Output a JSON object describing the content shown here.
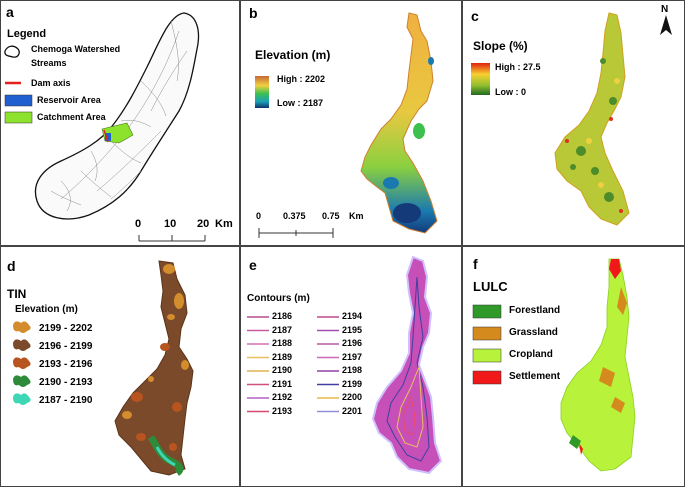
{
  "panels": {
    "a": {
      "label": "a",
      "legend_title": "Legend",
      "legend": [
        {
          "text": "Chemoga Watershed",
          "symbol": "watershed-outline"
        },
        {
          "text": "Streams",
          "symbol": "none"
        },
        {
          "text": "Dam axis",
          "symbol": "red-line",
          "color": "#e3201b"
        },
        {
          "text": "Reservoir Area",
          "symbol": "fill",
          "color": "#1f5fd0"
        },
        {
          "text": "Catchment Area",
          "symbol": "fill",
          "color": "#8ce22c"
        }
      ],
      "scale": {
        "ticks": [
          "0",
          "10",
          "20"
        ],
        "unit": "Km"
      }
    },
    "b": {
      "label": "b",
      "title": "Elevation (m)",
      "high": "High : 2202",
      "low": "Low : 2187",
      "scale": {
        "ticks": [
          "0",
          "0.375",
          "0.75"
        ],
        "unit": "Km"
      }
    },
    "c": {
      "label": "c",
      "title": "Slope (%)",
      "high": "High : 27.5",
      "low": "Low : 0",
      "north": "N"
    },
    "d": {
      "label": "d",
      "title": "TIN",
      "subtitle": "Elevation (m)",
      "classes": [
        {
          "range": "2199 - 2202",
          "color": "#d48d2c"
        },
        {
          "range": "2196 - 2199",
          "color": "#7b4a2a"
        },
        {
          "range": "2193 - 2196",
          "color": "#b8541f"
        },
        {
          "range": "2190 - 2193",
          "color": "#2e8b3a"
        },
        {
          "range": "2187 - 2190",
          "color": "#3ed7b5"
        }
      ]
    },
    "e": {
      "label": "e",
      "title": "Contours (m)",
      "col1": [
        {
          "value": "2186",
          "color": "#b84a8e"
        },
        {
          "value": "2187",
          "color": "#c85aa0"
        },
        {
          "value": "2188",
          "color": "#d070b0"
        },
        {
          "value": "2189",
          "color": "#e8c060"
        },
        {
          "value": "2190",
          "color": "#e0b050"
        },
        {
          "value": "2191",
          "color": "#d05080"
        },
        {
          "value": "2192",
          "color": "#b060c0"
        },
        {
          "value": "2193",
          "color": "#d84a70"
        }
      ],
      "col2": [
        {
          "value": "2194",
          "color": "#c04890"
        },
        {
          "value": "2195",
          "color": "#a050b0"
        },
        {
          "value": "2196",
          "color": "#b85aa8"
        },
        {
          "value": "2197",
          "color": "#d068b8"
        },
        {
          "value": "2198",
          "color": "#9040a8"
        },
        {
          "value": "2199",
          "color": "#4040a0"
        },
        {
          "value": "2200",
          "color": "#e8b848"
        },
        {
          "value": "2201",
          "color": "#9090d8"
        }
      ]
    },
    "f": {
      "label": "f",
      "title": "LULC",
      "classes": [
        {
          "name": "Forestland",
          "color": "#2f9a2a"
        },
        {
          "name": "Grassland",
          "color": "#d48a1c"
        },
        {
          "name": "Cropland",
          "color": "#b8f23a"
        },
        {
          "name": "Settlement",
          "color": "#f01818"
        }
      ]
    }
  }
}
